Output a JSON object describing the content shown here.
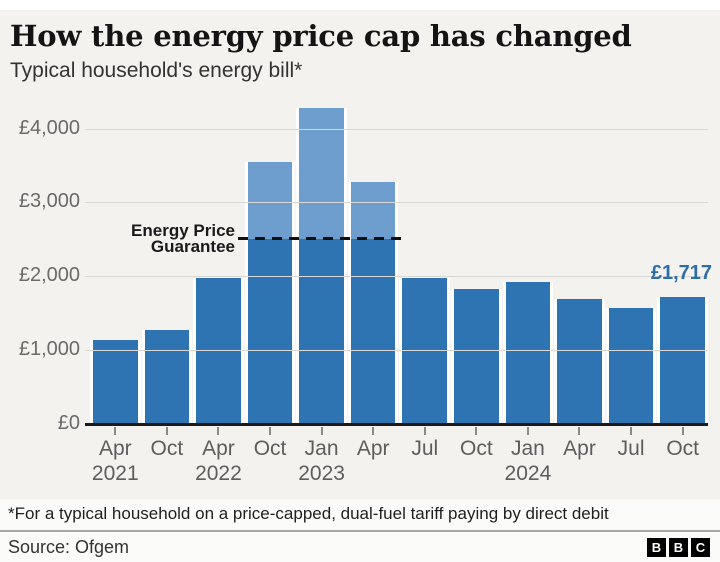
{
  "header": {
    "title": "How the energy price cap has changed",
    "subtitle": "Typical household's energy bill*"
  },
  "chart_data": {
    "type": "bar",
    "title": "How the energy price cap has changed",
    "subtitle": "Typical household's energy bill*",
    "categories": [
      "Apr 2021",
      "Oct 2021",
      "Apr 2022",
      "Oct 2022",
      "Jan 2023",
      "Apr 2023",
      "Jul 2023",
      "Oct 2023",
      "Jan 2024",
      "Apr 2024",
      "Jul 2024",
      "Oct 2024"
    ],
    "values": [
      1138,
      1277,
      1971,
      3549,
      4279,
      3280,
      1976,
      1834,
      1928,
      1690,
      1568,
      1717
    ],
    "x_tick_labels": [
      "Apr",
      "Oct",
      "Apr",
      "Oct",
      "Jan",
      "Apr",
      "Jul",
      "Oct",
      "Jan",
      "Apr",
      "Jul",
      "Oct"
    ],
    "x_year_labels": {
      "0": "2021",
      "2": "2022",
      "4": "2023",
      "8": "2024"
    },
    "ylim": [
      0,
      4400
    ],
    "y_ticks": [
      0,
      1000,
      2000,
      3000,
      4000
    ],
    "y_tick_labels": [
      "£0",
      "£1,000",
      "£2,000",
      "£3,000",
      "£4,000"
    ],
    "grid": "horizontal",
    "guarantee": {
      "value": 2500,
      "label_line1": "Energy Price",
      "label_line2": "Guarantee",
      "capped_bar_indexes": [
        3,
        4,
        5
      ]
    },
    "annotation": {
      "text": "£1,717",
      "bar_index": 11,
      "color": "#2d6da8"
    },
    "colors": {
      "bar": "#2e74b2",
      "bar_above_guarantee": "#6e9ecd",
      "background": "#f3f2ef"
    }
  },
  "footer": {
    "footnote": "*For a typical household on a price-capped, dual-fuel tariff paying by direct debit",
    "source": "Source: Ofgem",
    "logo_letters": [
      "B",
      "B",
      "C"
    ]
  }
}
